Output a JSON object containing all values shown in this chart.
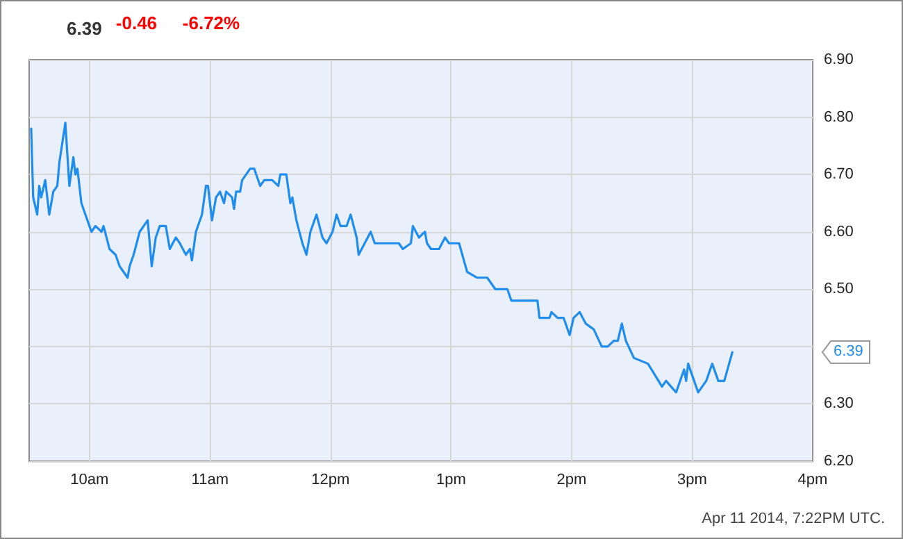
{
  "chart_data": {
    "type": "line",
    "title": "6.39",
    "annotations": [
      "-0.46",
      "-6.72%",
      "Apr 11 2014, 7:22PM UTC.",
      "6.39"
    ],
    "x": [
      "2014-04-11T09:31",
      "2014-04-11T09:32",
      "2014-04-11T09:34",
      "2014-04-11T09:35",
      "2014-04-11T09:36",
      "2014-04-11T09:38",
      "2014-04-11T09:39",
      "2014-04-11T09:40",
      "2014-04-11T09:42",
      "2014-04-11T09:44",
      "2014-04-11T09:45",
      "2014-04-11T09:48",
      "2014-04-11T09:50",
      "2014-04-11T09:52",
      "2014-04-11T09:53",
      "2014-04-11T09:54",
      "2014-04-11T09:56",
      "2014-04-11T09:59",
      "2014-04-11T10:01",
      "2014-04-11T10:03",
      "2014-04-11T10:06",
      "2014-04-11T10:07",
      "2014-04-11T10:10",
      "2014-04-11T10:13",
      "2014-04-11T10:15",
      "2014-04-11T10:19",
      "2014-04-11T10:20",
      "2014-04-11T10:22",
      "2014-04-11T10:25",
      "2014-04-11T10:29",
      "2014-04-11T10:31",
      "2014-04-11T10:33",
      "2014-04-11T10:35",
      "2014-04-11T10:38",
      "2014-04-11T10:40",
      "2014-04-11T10:43",
      "2014-04-11T10:45",
      "2014-04-11T10:48",
      "2014-04-11T10:50",
      "2014-04-11T10:51",
      "2014-04-11T10:53",
      "2014-04-11T10:56",
      "2014-04-11T10:58",
      "2014-04-11T10:59",
      "2014-04-11T11:01",
      "2014-04-11T11:03",
      "2014-04-11T11:05",
      "2014-04-11T11:07",
      "2014-04-11T11:08",
      "2014-04-11T11:11",
      "2014-04-11T11:12",
      "2014-04-11T11:13",
      "2014-04-11T11:15",
      "2014-04-11T11:16",
      "2014-04-11T11:20",
      "2014-04-11T11:22",
      "2014-04-11T11:25",
      "2014-04-11T11:27",
      "2014-04-11T11:31",
      "2014-04-11T11:34",
      "2014-04-11T11:35",
      "2014-04-11T11:38",
      "2014-04-11T11:40",
      "2014-04-11T11:41",
      "2014-04-11T11:43",
      "2014-04-11T11:46",
      "2014-04-11T11:48",
      "2014-04-11T11:50",
      "2014-04-11T11:53",
      "2014-04-11T11:56",
      "2014-04-11T11:58",
      "2014-04-11T12:01",
      "2014-04-11T12:03",
      "2014-04-11T12:05",
      "2014-04-11T12:08",
      "2014-04-11T12:10",
      "2014-04-11T12:13",
      "2014-04-11T12:14",
      "2014-04-11T12:17",
      "2014-04-11T12:20",
      "2014-04-11T12:22",
      "2014-04-11T12:29",
      "2014-04-11T12:34",
      "2014-04-11T12:36",
      "2014-04-11T12:40",
      "2014-04-11T12:41",
      "2014-04-11T12:44",
      "2014-04-11T12:47",
      "2014-04-11T12:48",
      "2014-04-11T12:50",
      "2014-04-11T12:54",
      "2014-04-11T12:57",
      "2014-04-11T12:59",
      "2014-04-11T13:04",
      "2014-04-11T13:08",
      "2014-04-11T13:13",
      "2014-04-11T13:18",
      "2014-04-11T13:22",
      "2014-04-11T13:28",
      "2014-04-11T13:30",
      "2014-04-11T13:34",
      "2014-04-11T13:43",
      "2014-04-11T13:44",
      "2014-04-11T13:49",
      "2014-04-11T13:50",
      "2014-04-11T13:53",
      "2014-04-11T13:56",
      "2014-04-11T13:59",
      "2014-04-11T14:01",
      "2014-04-11T14:04",
      "2014-04-11T14:07",
      "2014-04-11T14:11",
      "2014-04-11T14:15",
      "2014-04-11T14:18",
      "2014-04-11T14:21",
      "2014-04-11T14:23",
      "2014-04-11T14:25",
      "2014-04-11T14:27",
      "2014-04-11T14:31",
      "2014-04-11T14:38",
      "2014-04-11T14:45",
      "2014-04-11T14:47",
      "2014-04-11T14:52",
      "2014-04-11T14:56",
      "2014-04-11T14:57",
      "2014-04-11T14:58",
      "2014-04-11T15:03",
      "2014-04-11T15:07",
      "2014-04-11T15:10",
      "2014-04-11T15:13",
      "2014-04-11T15:16",
      "2014-04-11T15:20"
    ],
    "series": [
      {
        "color": "#1f8ded",
        "values": [
          6.78,
          6.66,
          6.63,
          6.68,
          6.66,
          6.69,
          6.66,
          6.63,
          6.67,
          6.68,
          6.72,
          6.79,
          6.68,
          6.73,
          6.7,
          6.71,
          6.65,
          6.62,
          6.6,
          6.61,
          6.6,
          6.61,
          6.57,
          6.56,
          6.54,
          6.52,
          6.54,
          6.56,
          6.6,
          6.62,
          6.54,
          6.59,
          6.61,
          6.61,
          6.57,
          6.59,
          6.58,
          6.56,
          6.57,
          6.55,
          6.6,
          6.63,
          6.68,
          6.68,
          6.62,
          6.66,
          6.67,
          6.65,
          6.67,
          6.66,
          6.64,
          6.67,
          6.67,
          6.69,
          6.71,
          6.71,
          6.68,
          6.69,
          6.69,
          6.68,
          6.7,
          6.7,
          6.65,
          6.66,
          6.62,
          6.58,
          6.56,
          6.6,
          6.63,
          6.59,
          6.58,
          6.6,
          6.63,
          6.61,
          6.61,
          6.63,
          6.59,
          6.56,
          6.58,
          6.6,
          6.58,
          6.58,
          6.58,
          6.57,
          6.58,
          6.61,
          6.59,
          6.6,
          6.58,
          6.57,
          6.57,
          6.59,
          6.58,
          6.58,
          6.53,
          6.52,
          6.52,
          6.5,
          6.5,
          6.48,
          6.48,
          6.48,
          6.45,
          6.45,
          6.46,
          6.45,
          6.45,
          6.42,
          6.45,
          6.46,
          6.44,
          6.43,
          6.4,
          6.4,
          6.41,
          6.41,
          6.44,
          6.41,
          6.38,
          6.37,
          6.33,
          6.34,
          6.32,
          6.36,
          6.34,
          6.37,
          6.32,
          6.34,
          6.37,
          6.34,
          6.34,
          6.39
        ]
      }
    ],
    "xlim": [
      "2014-04-11T09:30",
      "2014-04-11T16:00"
    ],
    "xticks": [
      {
        "value": "2014-04-11T10:00",
        "label": "10am"
      },
      {
        "value": "2014-04-11T11:00",
        "label": "11am"
      },
      {
        "value": "2014-04-11T12:00",
        "label": "12pm"
      },
      {
        "value": "2014-04-11T13:00",
        "label": "1pm"
      },
      {
        "value": "2014-04-11T14:00",
        "label": "2pm"
      },
      {
        "value": "2014-04-11T15:00",
        "label": "3pm"
      },
      {
        "value": "2014-04-11T16:00",
        "label": "4pm"
      }
    ],
    "ylim": [
      6.2,
      6.9
    ],
    "yticks": [
      {
        "value": 6.2,
        "label": "6.20"
      },
      {
        "value": 6.3,
        "label": "6.30"
      },
      {
        "value": 6.4,
        "label": null
      },
      {
        "value": 6.5,
        "label": "6.50"
      },
      {
        "value": 6.6,
        "label": "6.60"
      },
      {
        "value": 6.7,
        "label": "6.70"
      },
      {
        "value": 6.8,
        "label": "6.80"
      },
      {
        "value": 6.9,
        "label": "6.90"
      }
    ],
    "grid": true,
    "marker": "none",
    "line_style": "solid"
  }
}
